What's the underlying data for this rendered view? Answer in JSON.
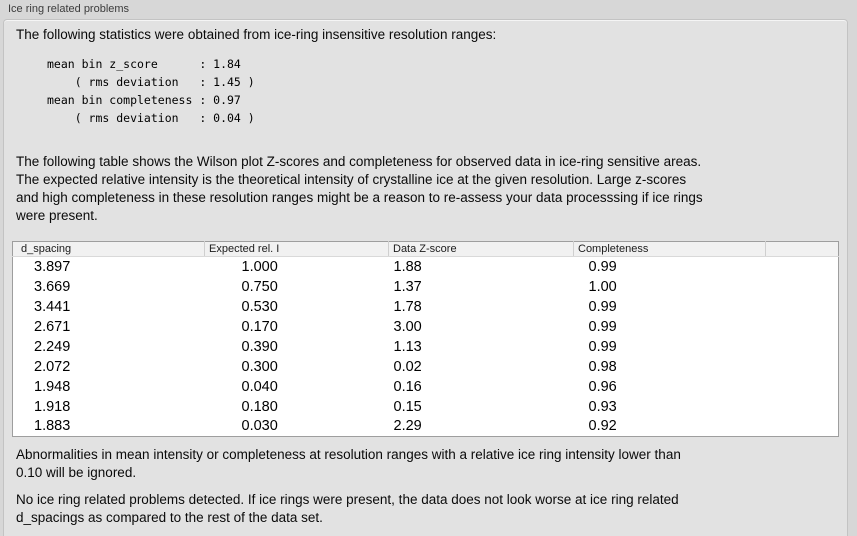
{
  "panel": {
    "title": "Ice ring related problems"
  },
  "intro_text": "The following statistics were obtained from ice-ring insensitive resolution ranges:",
  "stats_block": "mean bin z_score      : 1.84\n    ( rms deviation   : 1.45 )\nmean bin completeness : 0.97\n    ( rms deviation   : 0.04 )",
  "stats": {
    "mean_bin_z_score": "1.84",
    "z_score_rms_deviation": "1.45",
    "mean_bin_completeness": "0.97",
    "completeness_rms_deviation": "0.04"
  },
  "table_intro": "The following table shows the Wilson plot Z-scores and completeness for observed data in ice-ring sensitive areas.\nThe expected relative intensity is the theoretical intensity of crystalline ice at the given resolution. Large z-scores\nand high completeness in these resolution ranges might be a reason to re-assess your data processsing if ice rings\nwere present.",
  "table": {
    "columns": [
      "d_spacing",
      "Expected rel. I",
      "Data Z-score",
      "Completeness",
      ""
    ],
    "rows": [
      [
        "3.897",
        "1.000",
        "1.88",
        "0.99"
      ],
      [
        "3.669",
        "0.750",
        "1.37",
        "1.00"
      ],
      [
        "3.441",
        "0.530",
        "1.78",
        "0.99"
      ],
      [
        "2.671",
        "0.170",
        "3.00",
        "0.99"
      ],
      [
        "2.249",
        "0.390",
        "1.13",
        "0.99"
      ],
      [
        "2.072",
        "0.300",
        "0.02",
        "0.98"
      ],
      [
        "1.948",
        "0.040",
        "0.16",
        "0.96"
      ],
      [
        "1.918",
        "0.180",
        "0.15",
        "0.93"
      ],
      [
        "1.883",
        "0.030",
        "2.29",
        "0.92"
      ]
    ]
  },
  "ignore_note": "Abnormalities in mean intensity or completeness at resolution ranges with a relative ice ring intensity lower than\n0.10 will be ignored.",
  "conclusion": "No ice ring related problems detected. If ice rings were present, the data does not look worse at ice ring related\nd_spacings as compared to the rest of the data set.",
  "colors": {
    "page_background": "#d7d7d7",
    "groupbox_background": "#e2e2e2",
    "groupbox_border": "#c3c3c3",
    "table_background": "#ffffff",
    "table_border": "#9e9e9e",
    "header_background": "#f1f1f1",
    "text": "#000000"
  }
}
